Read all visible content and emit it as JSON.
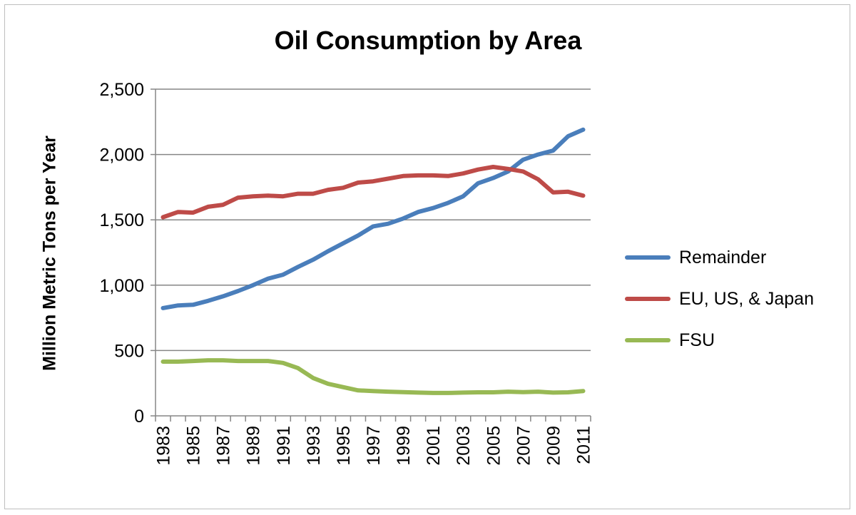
{
  "chart_data": {
    "type": "line",
    "title": "Oil Consumption by Area",
    "xlabel": "",
    "ylabel": "Million Metric Tons per Year",
    "ylim": [
      0,
      2500
    ],
    "yticks": [
      0,
      500,
      1000,
      1500,
      2000,
      2500
    ],
    "ytick_labels": [
      "0",
      "500",
      "1,000",
      "1,500",
      "2,000",
      "2,500"
    ],
    "x": [
      1983,
      1984,
      1985,
      1986,
      1987,
      1988,
      1989,
      1990,
      1991,
      1992,
      1993,
      1994,
      1995,
      1996,
      1997,
      1998,
      1999,
      2000,
      2001,
      2002,
      2003,
      2004,
      2005,
      2006,
      2007,
      2008,
      2009,
      2010,
      2011
    ],
    "xtick_labels": [
      "1983",
      "1985",
      "1987",
      "1989",
      "1991",
      "1993",
      "1995",
      "1997",
      "1999",
      "2001",
      "2003",
      "2005",
      "2007",
      "2009",
      "2011"
    ],
    "grid": true,
    "legend_position": "right",
    "series": [
      {
        "name": "Remainder",
        "color": "#4a7ebb",
        "values": [
          825,
          845,
          850,
          880,
          915,
          955,
          1000,
          1050,
          1080,
          1140,
          1195,
          1260,
          1320,
          1380,
          1450,
          1470,
          1510,
          1560,
          1590,
          1630,
          1680,
          1780,
          1820,
          1870,
          1960,
          2000,
          2030,
          2140,
          2190
        ]
      },
      {
        "name": "EU, US, & Japan",
        "color": "#be4b48",
        "values": [
          1520,
          1560,
          1555,
          1600,
          1615,
          1670,
          1680,
          1685,
          1680,
          1700,
          1700,
          1730,
          1745,
          1785,
          1795,
          1815,
          1835,
          1840,
          1840,
          1835,
          1855,
          1885,
          1905,
          1890,
          1870,
          1810,
          1710,
          1715,
          1685
        ]
      },
      {
        "name": "FSU",
        "color": "#98b954",
        "values": [
          415,
          415,
          420,
          425,
          425,
          420,
          420,
          420,
          405,
          365,
          290,
          245,
          220,
          195,
          190,
          185,
          182,
          178,
          175,
          175,
          178,
          180,
          180,
          185,
          182,
          185,
          178,
          180,
          190
        ]
      }
    ]
  }
}
